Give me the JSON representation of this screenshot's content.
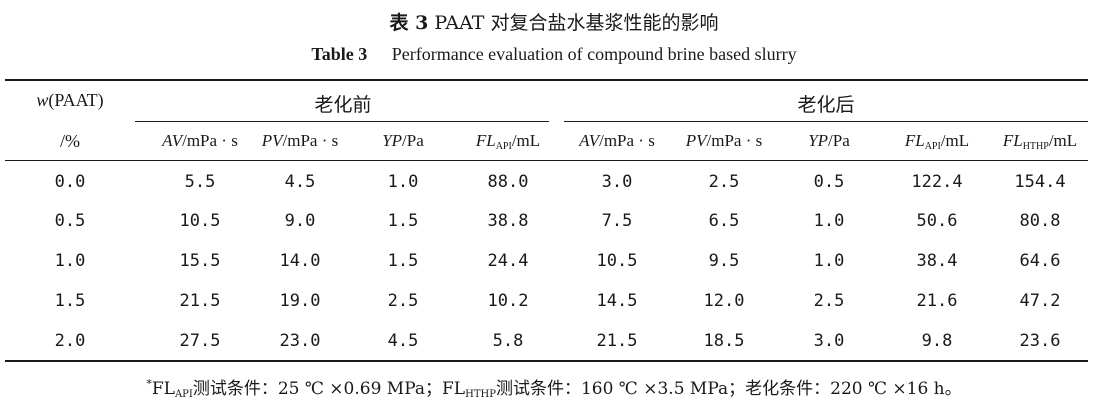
{
  "caption": {
    "cn_label": "表 3",
    "cn_text": "PAAT 对复合盐水基浆性能的影响",
    "en_label": "Table 3",
    "en_text": "Performance evaluation of compound brine based slurry"
  },
  "table": {
    "row_header_top": "w(PAAT)",
    "row_header_bottom": "/%",
    "group_before": "老化前",
    "group_after": "老化后",
    "columns": [
      {
        "sym": "AV",
        "sub": "",
        "unit": "/mPa · s"
      },
      {
        "sym": "PV",
        "sub": "",
        "unit": "/mPa · s"
      },
      {
        "sym": "YP",
        "sub": "",
        "unit": "/Pa"
      },
      {
        "sym": "FL",
        "sub": "API",
        "unit": "/mL"
      },
      {
        "sym": "AV",
        "sub": "",
        "unit": "/mPa · s"
      },
      {
        "sym": "PV",
        "sub": "",
        "unit": "/mPa · s"
      },
      {
        "sym": "YP",
        "sub": "",
        "unit": "/Pa"
      },
      {
        "sym": "FL",
        "sub": "API",
        "unit": "/mL"
      },
      {
        "sym": "FL",
        "sub": "HTHP",
        "unit": "/mL"
      }
    ],
    "rows": [
      {
        "w": "0.0",
        "values": [
          "5.5",
          "4.5",
          "1.0",
          "88.0",
          "3.0",
          "2.5",
          "0.5",
          "122.4",
          "154.4"
        ]
      },
      {
        "w": "0.5",
        "values": [
          "10.5",
          "9.0",
          "1.5",
          "38.8",
          "7.5",
          "6.5",
          "1.0",
          "50.6",
          "80.8"
        ]
      },
      {
        "w": "1.0",
        "values": [
          "15.5",
          "14.0",
          "1.5",
          "24.4",
          "10.5",
          "9.5",
          "1.0",
          "38.4",
          "64.6"
        ]
      },
      {
        "w": "1.5",
        "values": [
          "21.5",
          "19.0",
          "2.5",
          "10.2",
          "14.5",
          "12.0",
          "2.5",
          "21.6",
          "47.2"
        ]
      },
      {
        "w": "2.0",
        "values": [
          "27.5",
          "23.0",
          "4.5",
          "5.8",
          "21.5",
          "18.5",
          "3.0",
          "9.8",
          "23.6"
        ]
      }
    ]
  },
  "footnote": {
    "marker": "*",
    "p1": "FL",
    "s1": "API",
    "p2": "测试条件：25 ℃ ×0.69 MPa；FL",
    "s2": "HTHP",
    "p3": "测试条件：160 ℃ ×3.5 MPa；老化条件：220 ℃ ×16 h。"
  }
}
